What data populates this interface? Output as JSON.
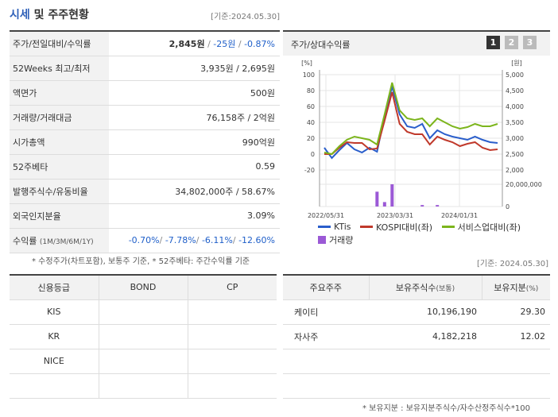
{
  "header": {
    "title_hl": "시세",
    "title_rest": " 및 주주현황",
    "basis": "[기준:2024.05.30]"
  },
  "info": [
    {
      "label": "주가/전일대비/수익률",
      "v1": "2,845원",
      "v2": "-25원",
      "v3": "-0.87%"
    },
    {
      "label": "52Weeks 최고/최저",
      "value": "3,935원 / 2,695원"
    },
    {
      "label": "액면가",
      "value": "500원"
    },
    {
      "label": "거래량/거래대금",
      "value": "76,158주 / 2억원"
    },
    {
      "label": "시가총액",
      "value": "990억원"
    },
    {
      "label": "52주베타",
      "value": "0.59"
    },
    {
      "label": "발행주식수/유동비율",
      "value": "34,802,000주 / 58.67%"
    },
    {
      "label": "외국인지분율",
      "value": "3.09%"
    },
    {
      "label": "수익률",
      "label_small": "(1M/3M/6M/1Y)",
      "r1": "-0.70%",
      "r2": "-7.78%",
      "r3": "-6.11%",
      "r4": "-12.60%"
    }
  ],
  "notes": {
    "note1": "* 수정주가(차트포함), 보통주 기준, * 52주베타: 주간수익률 기준",
    "basis2": "[기준: 2024.05.30]",
    "note2": "* 보유지분 : 보유지분주식수/자수산정주식수*100"
  },
  "chart_panel": {
    "title": "주가/상대수익률",
    "pages": [
      "1",
      "2",
      "3"
    ]
  },
  "chart_data": {
    "type": "line",
    "left_unit": "[%]",
    "right_unit": "[원]",
    "ylim": [
      -20,
      100
    ],
    "y_ticks": [
      "100",
      "80",
      "60",
      "40",
      "20",
      "0",
      "-20"
    ],
    "right_ticks": [
      "5,000",
      "4,500",
      "4,000",
      "3,500",
      "3,000",
      "2,500",
      "2,000"
    ],
    "volume_ticks": [
      "20,000,000",
      "0"
    ],
    "x_ticks": [
      "2022/05/31",
      "2023/03/31",
      "2024/01/31"
    ],
    "series": [
      {
        "name": "KTis",
        "color": "#2a5ecb",
        "values": [
          8,
          -5,
          5,
          14,
          6,
          2,
          8,
          3,
          48,
          85,
          50,
          35,
          33,
          38,
          20,
          30,
          25,
          22,
          20,
          18,
          22,
          18,
          15,
          14
        ]
      },
      {
        "name": "KOSPI대비(좌)",
        "color": "#c0392b",
        "values": [
          0,
          0,
          8,
          15,
          14,
          14,
          6,
          7,
          42,
          78,
          38,
          28,
          25,
          25,
          12,
          22,
          18,
          15,
          10,
          13,
          15,
          8,
          5,
          6
        ]
      },
      {
        "name": "서비스업대비(좌)",
        "color": "#7cb51c",
        "values": [
          2,
          0,
          10,
          18,
          22,
          20,
          18,
          12,
          50,
          90,
          55,
          45,
          43,
          45,
          35,
          45,
          40,
          35,
          32,
          34,
          38,
          35,
          35,
          38
        ]
      }
    ],
    "volume": {
      "name": "거래량",
      "color": "#9b59d6",
      "values": [
        0,
        0,
        0,
        0,
        0,
        0,
        0,
        1,
        0.3,
        1.5,
        0,
        0,
        0,
        0.1,
        0,
        0.1,
        0,
        0,
        0,
        0,
        0,
        0,
        0,
        0
      ]
    }
  },
  "credit": {
    "headers": [
      "신용등급",
      "BOND",
      "CP"
    ],
    "rows": [
      [
        "KIS",
        "",
        ""
      ],
      [
        "KR",
        "",
        ""
      ],
      [
        "NICE",
        "",
        ""
      ],
      [
        "",
        "",
        ""
      ]
    ]
  },
  "holders": {
    "headers": [
      "주요주주",
      "보유주식수",
      "(보통)",
      "보유지분",
      "(%)"
    ],
    "rows": [
      [
        "케이티",
        "10,196,190",
        "29.30"
      ],
      [
        "자사주",
        "4,182,218",
        "12.02"
      ],
      [
        "",
        "",
        ""
      ],
      [
        "",
        "",
        ""
      ]
    ]
  }
}
